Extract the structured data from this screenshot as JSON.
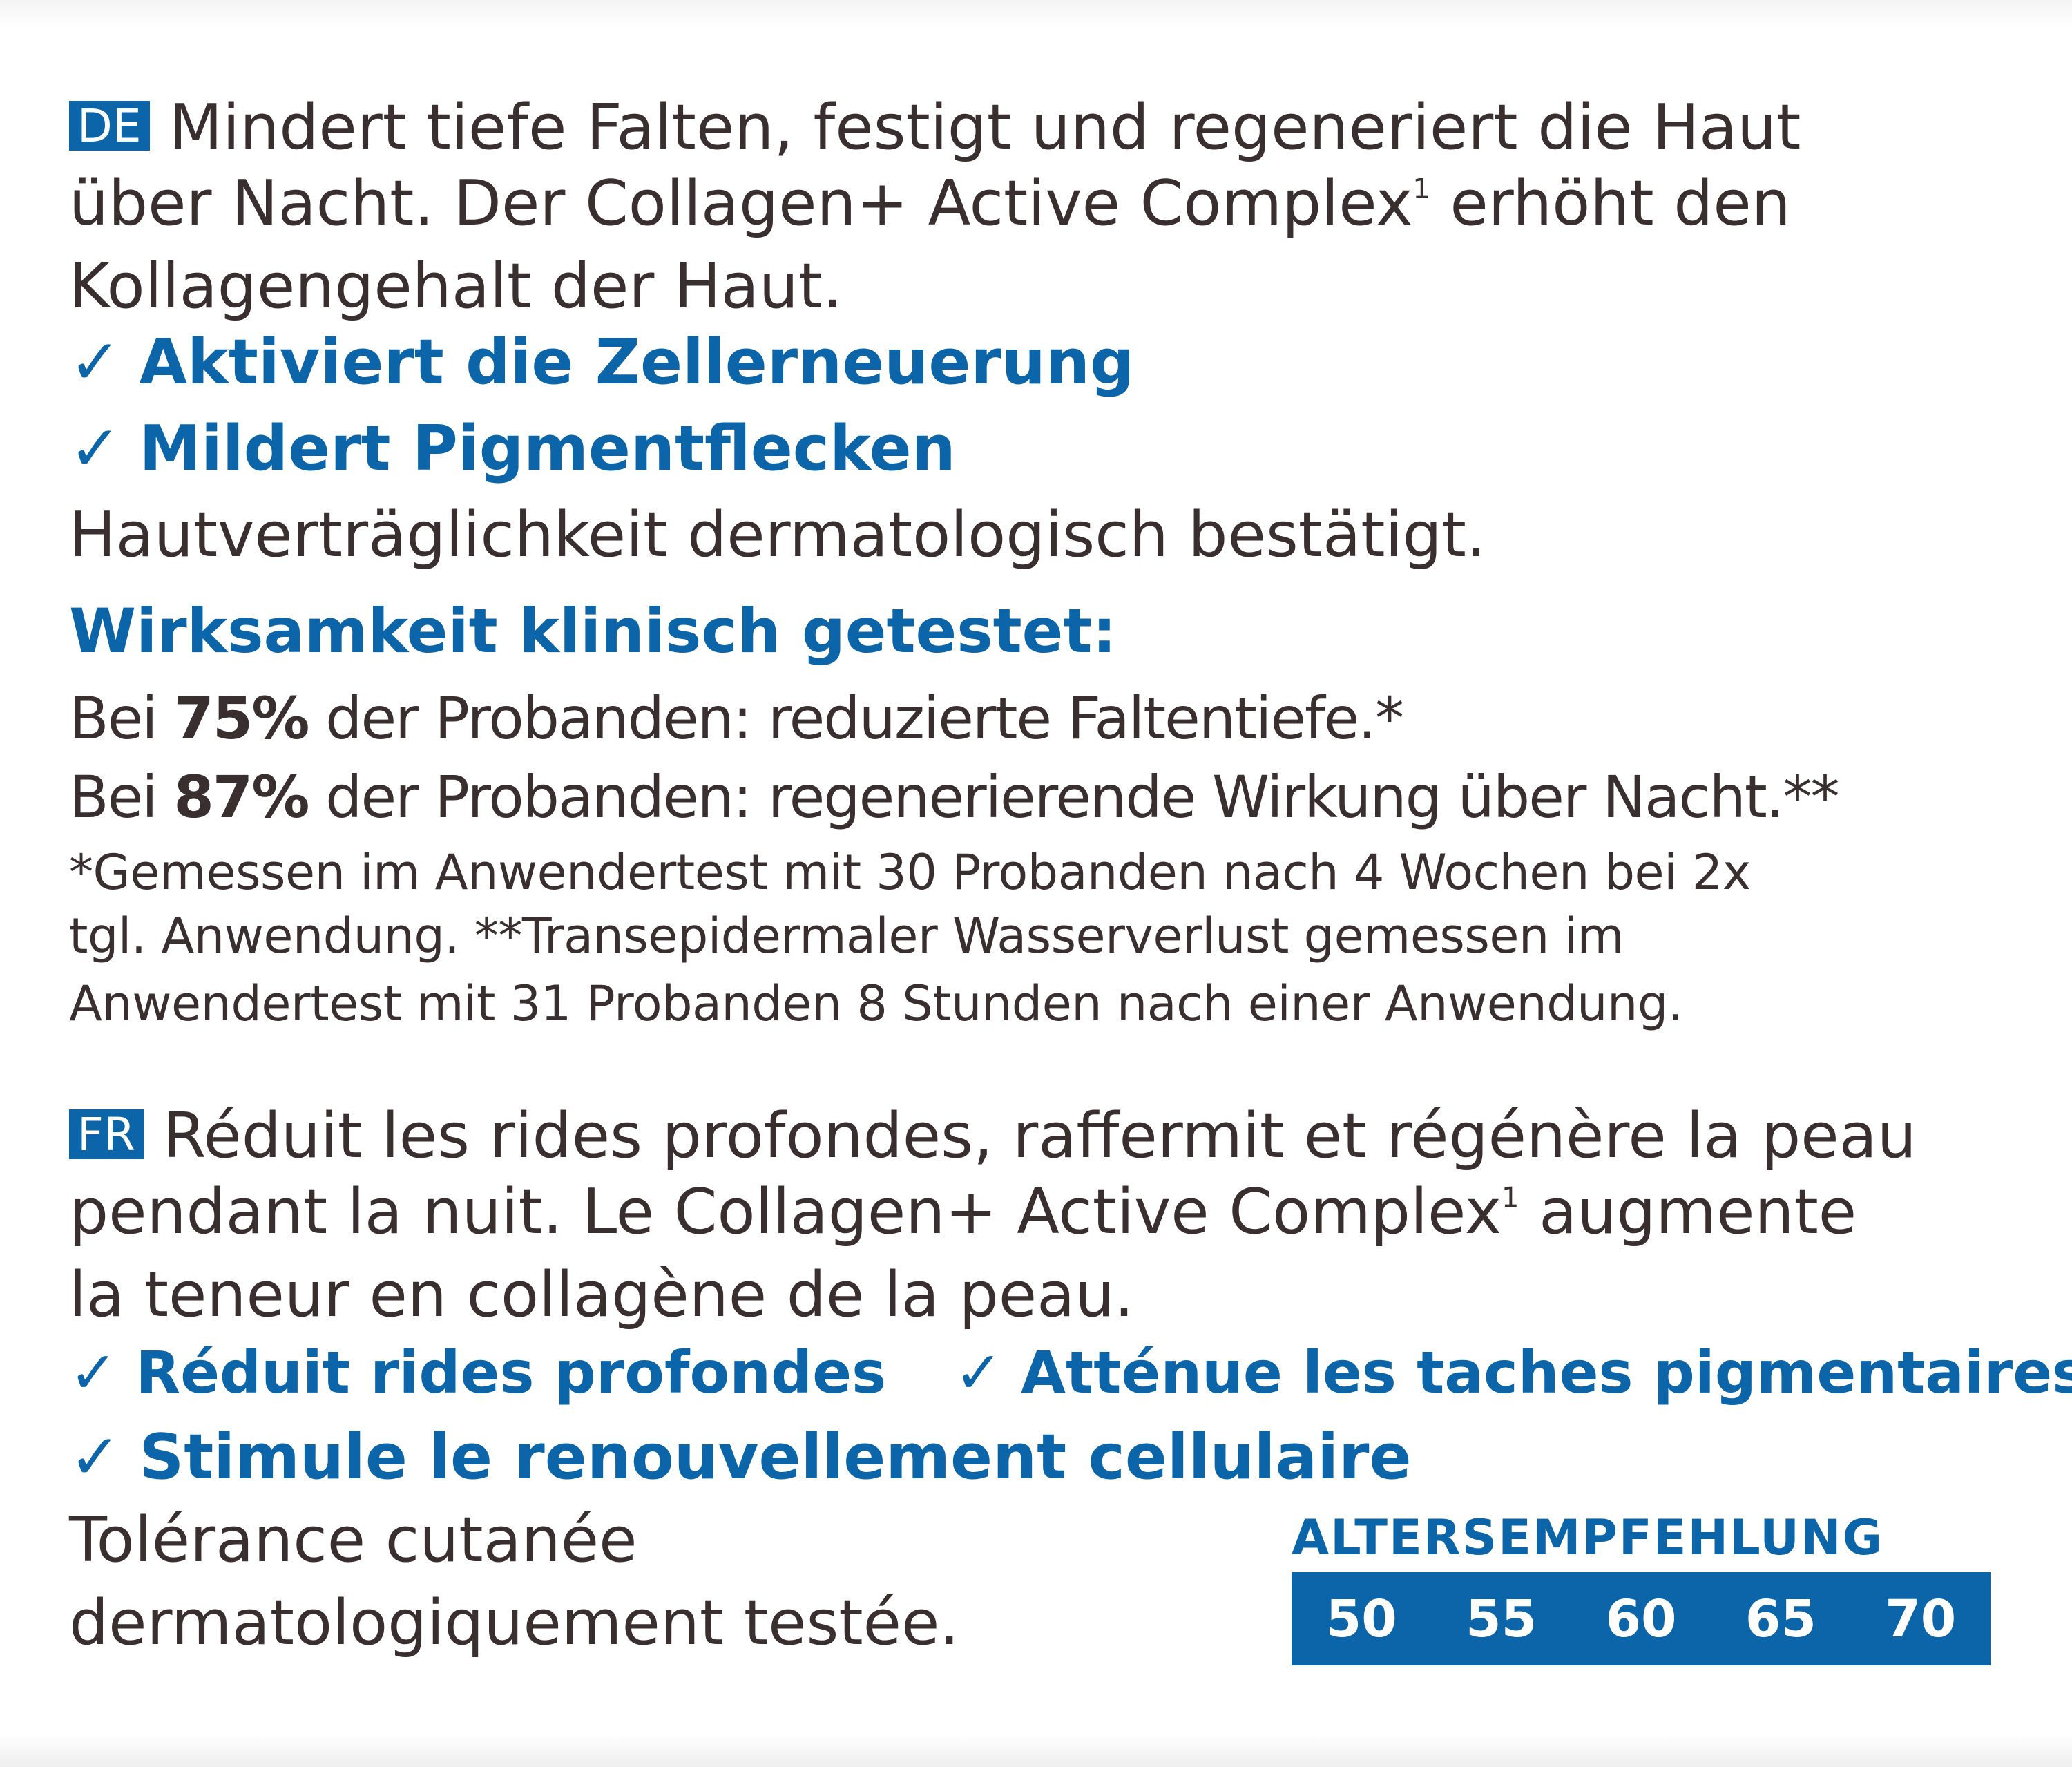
{
  "de": {
    "badge": "DE",
    "intro_line1": "Mindert tiefe Falten, festigt und regeneriert die Haut",
    "intro_line2a": "über Nacht. Der Collagen+ Active Complex",
    "intro_line2_sup": "1",
    "intro_line2b": " erhöht den",
    "intro_line3": "Kollagengehalt der Haut.",
    "check_icon": "✓",
    "benefits": [
      "Aktiviert die Zellerneuerung",
      "Mildert Pigmentflecken"
    ],
    "tolerance": "Hautverträglichkeit dermatologisch bestätigt.",
    "efficacy_heading": "Wirksamkeit klinisch getestet:",
    "stat1_prefix": "Bei ",
    "stat1_value": "75%",
    "stat1_suffix": " der Probanden: reduzierte Faltentiefe.*",
    "stat2_prefix": "Bei ",
    "stat2_value": "87%",
    "stat2_suffix": " der Probanden: regenerierende Wirkung über Nacht.**",
    "footnote_line1": "*Gemessen im Anwendertest mit 30 Probanden nach 4 Wochen bei 2x",
    "footnote_line2": "tgl. Anwendung. **Transepidermaler Wasserverlust gemessen im",
    "footnote_line3": "Anwendertest mit 31 Probanden 8 Stunden nach einer Anwendung."
  },
  "fr": {
    "badge": "FR",
    "intro_line1": "Réduit les rides profondes, raffermit et régénère la peau",
    "intro_line2a": "pendant la nuit. Le Collagen+ Active Complex",
    "intro_line2_sup": "1",
    "intro_line2b": " augmente",
    "intro_line3": "la teneur en collagène de la peau.",
    "check_icon": "✓",
    "benefits": [
      "Réduit rides profondes",
      "Atténue les taches pigmentaires",
      "Stimule le renouvellement cellulaire"
    ],
    "tolerance_line1": "Tolérance cutanée",
    "tolerance_line2": "dermatologiquement testée."
  },
  "age_recommendation": {
    "title": "ALTERSEMPFEHLUNG",
    "ages": [
      "50",
      "55",
      "60",
      "65",
      "70"
    ]
  },
  "colors": {
    "accent": "#0b65a8",
    "text": "#3a2f2f"
  }
}
